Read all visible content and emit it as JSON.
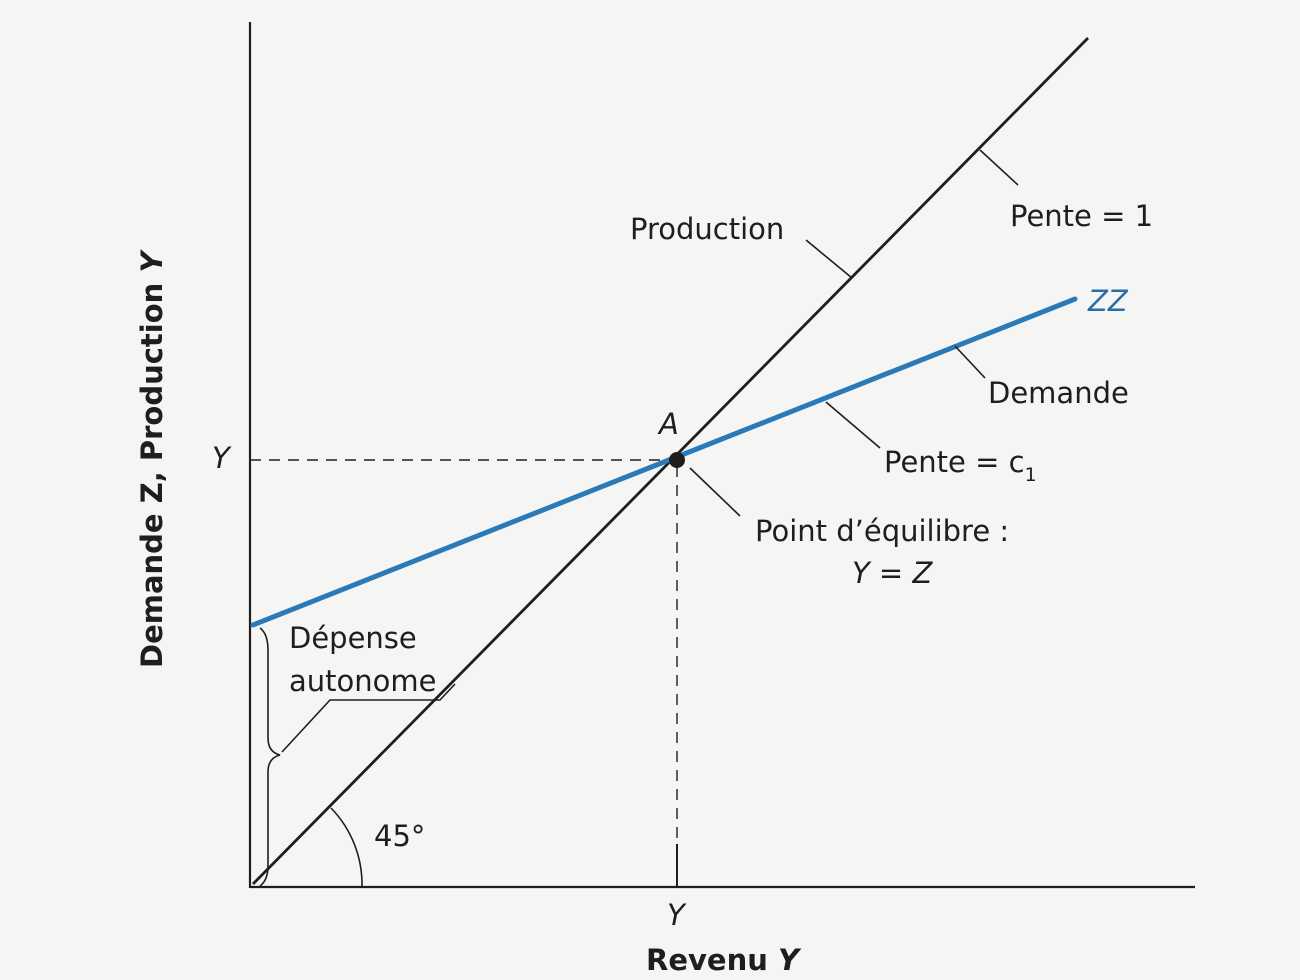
{
  "diagram": {
    "axes": {
      "y_label_main": "Demande Z, Production ",
      "y_label_var": "Y",
      "x_label_main": "Revenu ",
      "x_label_var": "Y",
      "y_tick": "Y",
      "x_tick": "Y"
    },
    "labels": {
      "production": "Production",
      "pente_1": "Pente = 1",
      "zz": "ZZ",
      "demande": "Demande",
      "pente_c1_prefix": "Pente = c",
      "pente_c1_sub": "1",
      "point_a": "A",
      "equilibre_line1": "Point d’équilibre :",
      "equilibre_line2": "Y = Z",
      "depense_line1": "Dépense",
      "depense_line2": "autonome",
      "angle": "45°"
    },
    "colors": {
      "demand_line": "#2a7ab8",
      "production_line": "#1e1e1e",
      "axes": "#1e1e1e",
      "background": "#f5f5f3"
    }
  }
}
